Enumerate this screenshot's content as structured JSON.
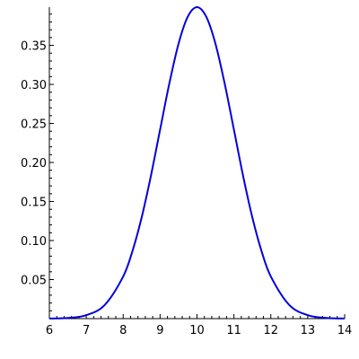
{
  "chart_data": {
    "type": "line",
    "title": "",
    "xlabel": "",
    "ylabel": "",
    "xlim": [
      6,
      14
    ],
    "ylim": [
      0,
      0.3989
    ],
    "x_ticks": [
      6,
      7,
      8,
      9,
      10,
      11,
      12,
      13,
      14
    ],
    "x_tick_labels": [
      "6",
      "7",
      "8",
      "9",
      "10",
      "11",
      "12",
      "13",
      "14"
    ],
    "y_ticks": [
      0.05,
      0.1,
      0.15,
      0.2,
      0.25,
      0.3,
      0.35
    ],
    "y_tick_labels": [
      "0.05",
      "0.10",
      "0.15",
      "0.20",
      "0.25",
      "0.30",
      "0.35"
    ],
    "grid": false,
    "legend": "none",
    "series": [
      {
        "x": [
          6,
          6.5,
          7,
          7.5,
          8,
          8.25,
          8.5,
          8.75,
          9,
          9.25,
          9.5,
          9.75,
          10,
          10.25,
          10.5,
          10.75,
          11,
          11.25,
          11.5,
          11.75,
          12,
          12.5,
          13,
          13.5,
          14
        ],
        "y": [
          0.0001,
          0.0009,
          0.0044,
          0.0175,
          0.054,
          0.0863,
          0.1295,
          0.1826,
          0.242,
          0.3011,
          0.3521,
          0.3867,
          0.3989,
          0.3867,
          0.3521,
          0.3011,
          0.242,
          0.1826,
          0.1295,
          0.0863,
          0.054,
          0.0175,
          0.0044,
          0.0009,
          0.0001
        ],
        "color": "#0000dd"
      }
    ]
  }
}
